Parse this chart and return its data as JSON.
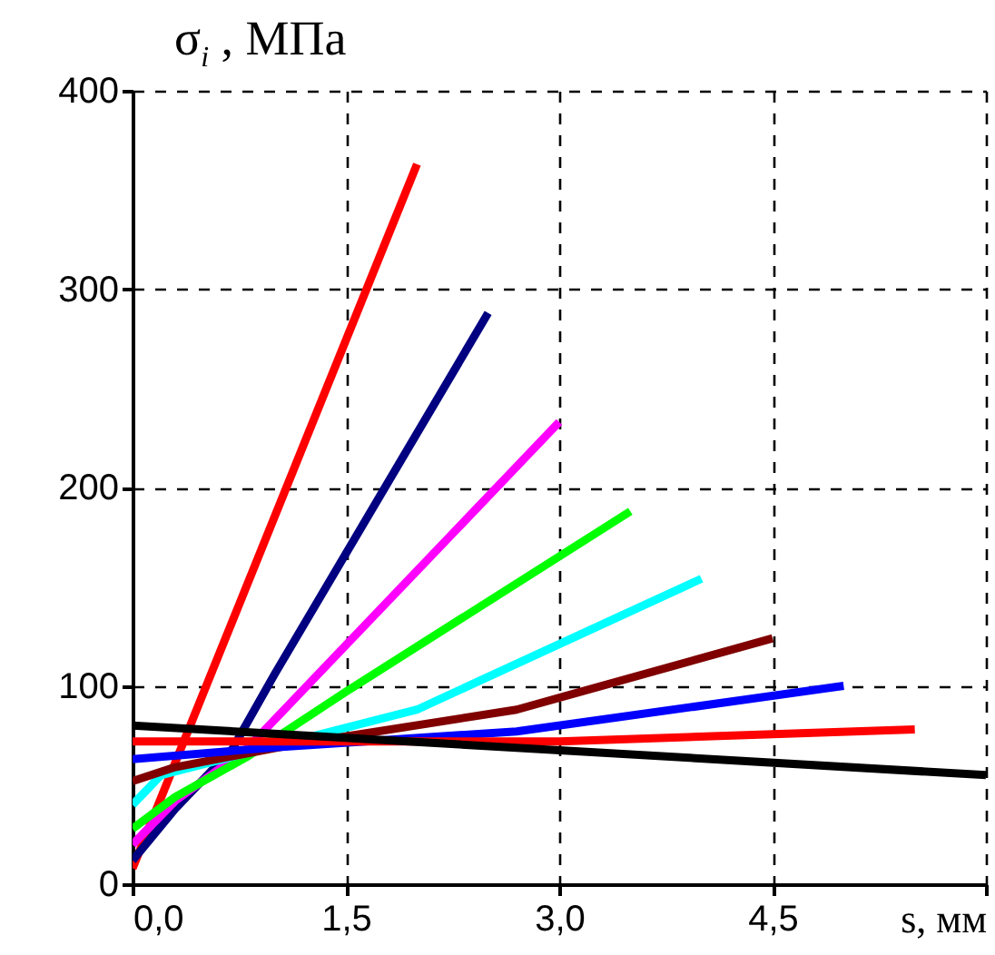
{
  "chart_data": {
    "type": "line",
    "ylabel": "σ$_{i}$ , МПа",
    "xlabel": "s, мм",
    "xlim": [
      0,
      6
    ],
    "ylim": [
      0,
      400
    ],
    "xticks": [
      {
        "value": 0,
        "label": "0,0"
      },
      {
        "value": 1.5,
        "label": "1,5"
      },
      {
        "value": 3,
        "label": "3,0"
      },
      {
        "value": 4.5,
        "label": "4,5"
      },
      {
        "value": 6,
        "label": null
      }
    ],
    "yticks": [
      0,
      100,
      200,
      300,
      400
    ],
    "grid": true,
    "line_style": "solid",
    "series": [
      {
        "color": "#ff0000",
        "x": [
          0,
          2.0
        ],
        "values": [
          8,
          363
        ]
      },
      {
        "color": "#000080",
        "x": [
          0,
          0.3,
          0.7,
          1.0,
          2.5
        ],
        "values": [
          12,
          38,
          68,
          106,
          288
        ]
      },
      {
        "color": "#ff00ff",
        "x": [
          0,
          0.3,
          0.8,
          3.0
        ],
        "values": [
          20,
          42,
          68,
          233
        ]
      },
      {
        "color": "#00ff00",
        "x": [
          0,
          0.3,
          0.8,
          1.5,
          3.5
        ],
        "values": [
          28,
          44,
          64,
          97,
          188
        ]
      },
      {
        "color": "#00ffff",
        "x": [
          0,
          0.2,
          2.0,
          4.0
        ],
        "values": [
          40,
          55,
          88,
          154
        ]
      },
      {
        "color": "#800000",
        "x": [
          0,
          0.3,
          1.1,
          2.7,
          4.5
        ],
        "values": [
          52,
          59,
          70,
          88,
          124
        ]
      },
      {
        "color": "#0000ff",
        "x": [
          0,
          1.0,
          2.7,
          5.0
        ],
        "values": [
          63,
          69,
          77,
          100
        ]
      },
      {
        "color": "#ff0000",
        "x": [
          0,
          1.5,
          3.0,
          5.5
        ],
        "values": [
          72,
          72,
          72,
          78
        ]
      },
      {
        "color": "#000000",
        "x": [
          0,
          6
        ],
        "values": [
          80,
          55
        ]
      }
    ]
  }
}
